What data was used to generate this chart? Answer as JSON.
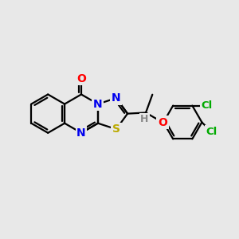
{
  "background_color": "#e8e8e8",
  "bond_color": "#000000",
  "atom_colors": {
    "N": "#0000ee",
    "O": "#ff0000",
    "S": "#bbaa00",
    "Cl": "#00aa00",
    "H": "#888888"
  },
  "bond_lw": 1.6,
  "font_size": 10,
  "figsize": [
    3.0,
    3.0
  ],
  "dpi": 100
}
